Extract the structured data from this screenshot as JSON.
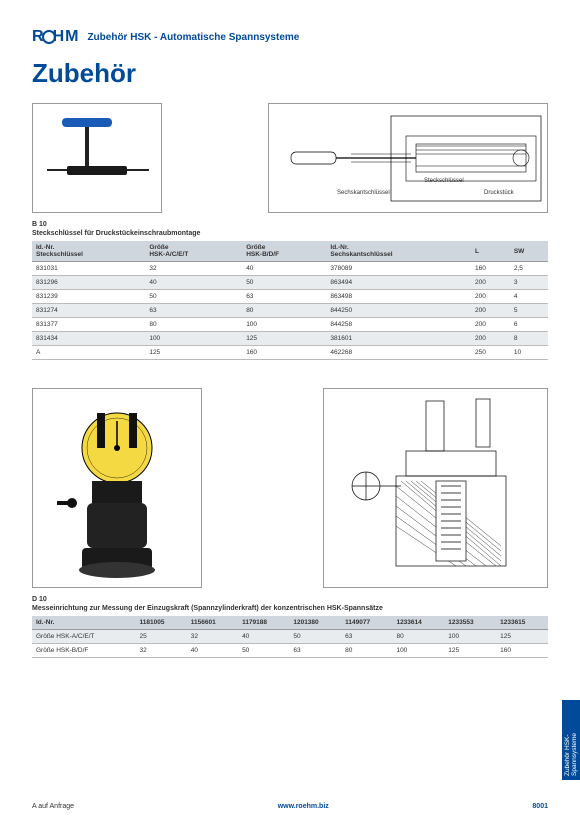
{
  "header": {
    "logo": "RÖHM",
    "subtitle": "Zubehör HSK - Automatische Spannsysteme"
  },
  "title": "Zubehör",
  "section1": {
    "code": "B 10",
    "desc": "Steckschlüssel für Druckstückeinschraubmontage",
    "fig2_labels": {
      "a": "Steckschlüssel",
      "b": "Sechskantschlüssel",
      "c": "Druckstück"
    },
    "cols1": [
      "Id.-Nr.\nSteckschlüssel",
      "Größe\nHSK-A/C/E/T",
      "Größe\nHSK-B/D/F"
    ],
    "cols2": [
      "Id.-Nr.\nSechskantschlüssel",
      "L",
      "SW"
    ],
    "rows": [
      [
        "831031",
        "32",
        "40",
        "378089",
        "160",
        "2,5"
      ],
      [
        "831296",
        "40",
        "50",
        "863494",
        "200",
        "3"
      ],
      [
        "831239",
        "50",
        "63",
        "863498",
        "200",
        "4"
      ],
      [
        "831274",
        "63",
        "80",
        "844250",
        "200",
        "5"
      ],
      [
        "831377",
        "80",
        "100",
        "844258",
        "200",
        "6"
      ],
      [
        "831434",
        "100",
        "125",
        "381601",
        "200",
        "8"
      ],
      [
        "A",
        "125",
        "160",
        "462268",
        "250",
        "10"
      ]
    ]
  },
  "section2": {
    "code": "D 10",
    "desc": "Messeinrichtung zur Messung der Einzugskraft (Spannzylinderkraft) der konzentrischen HSK-Spannsätze",
    "row_labels": [
      "Id.-Nr.",
      "Größe HSK-A/C/E/T",
      "Größe HSK-B/D/F"
    ],
    "cols": [
      "1181005",
      "1156601",
      "1179188",
      "1201380",
      "1149077",
      "1233614",
      "1233553",
      "1233615"
    ],
    "data": [
      [
        "25",
        "32",
        "40",
        "50",
        "63",
        "80",
        "100",
        "125"
      ],
      [
        "32",
        "40",
        "50",
        "63",
        "80",
        "100",
        "125",
        "160"
      ]
    ]
  },
  "sideTab": "Zubehör HSK-Spannsys­teme",
  "footer": {
    "left": "A  auf Anfrage",
    "center": "www.roehm.biz",
    "page": "8001"
  }
}
